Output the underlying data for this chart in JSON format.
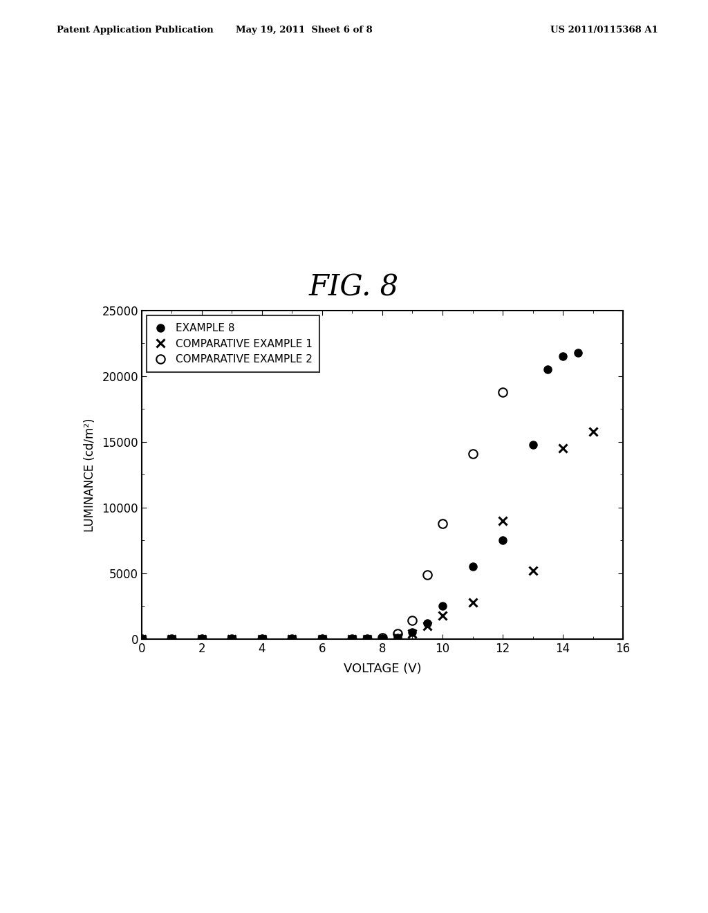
{
  "title": "FIG. 8",
  "xlabel": "VOLTAGE (V)",
  "ylabel": "LUMINANCE (cd/m²)",
  "xlim": [
    0,
    16
  ],
  "ylim": [
    0,
    25000
  ],
  "xticks": [
    0,
    2,
    4,
    6,
    8,
    10,
    12,
    14,
    16
  ],
  "yticks": [
    0,
    5000,
    10000,
    15000,
    20000,
    25000
  ],
  "example8_x": [
    0,
    1,
    2,
    3,
    4,
    5,
    6,
    7,
    7.5,
    8,
    8.5,
    9,
    9.5,
    10,
    11,
    12,
    13,
    13.5,
    14,
    14.5
  ],
  "example8_y": [
    0,
    0,
    0,
    0,
    0,
    0,
    0,
    0,
    5,
    30,
    120,
    500,
    1200,
    2500,
    5500,
    7500,
    14800,
    20500,
    21500,
    21800
  ],
  "comp1_x": [
    0,
    1,
    2,
    3,
    4,
    5,
    6,
    7,
    7.5,
    8,
    8.5,
    9,
    9.5,
    10,
    11,
    12,
    13,
    14,
    15
  ],
  "comp1_y": [
    0,
    0,
    0,
    0,
    0,
    0,
    0,
    0,
    5,
    20,
    100,
    400,
    1000,
    1800,
    2800,
    9000,
    5200,
    14500,
    15800
  ],
  "comp2_x": [
    0,
    1,
    2,
    3,
    4,
    5,
    6,
    7,
    7.5,
    8,
    8.5,
    9,
    9.5,
    10,
    11,
    12
  ],
  "comp2_y": [
    0,
    0,
    0,
    0,
    0,
    0,
    0,
    0,
    5,
    80,
    400,
    1400,
    4900,
    8800,
    14100,
    18800
  ],
  "header_left": "Patent Application Publication",
  "header_center": "May 19, 2011  Sheet 6 of 8",
  "header_right": "US 2011/0115368 A1",
  "background_color": "#ffffff",
  "plot_bg_color": "#ffffff",
  "legend_labels": [
    "EXAMPLE 8",
    "COMPARATIVE EXAMPLE 1",
    "COMPARATIVE EXAMPLE 2"
  ]
}
